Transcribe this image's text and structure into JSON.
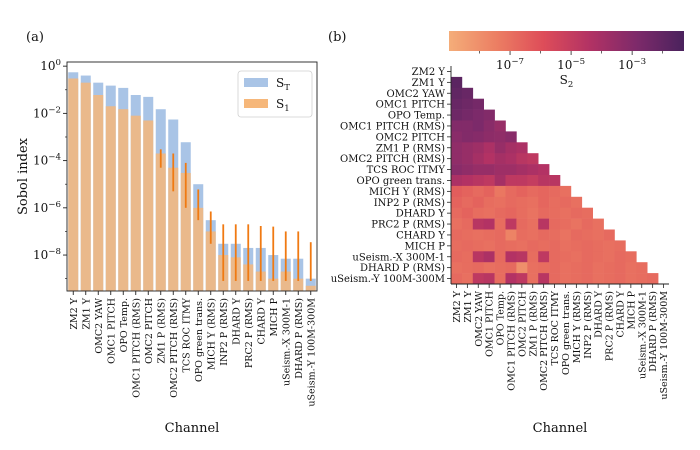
{
  "panels": {
    "a": "(a)",
    "b": "(b)"
  },
  "chart_data": [
    {
      "type": "bar",
      "panel": "(a)",
      "xlabel": "Channel",
      "ylabel": "Sobol index",
      "yscale": "log",
      "ylim": [
        3e-10,
        1.5
      ],
      "y_ticks": [
        1,
        0.01,
        0.0001,
        1e-06,
        1e-08
      ],
      "y_tick_labels": [
        {
          "base": "10",
          "exp": "0"
        },
        {
          "base": "10",
          "exp": "−2"
        },
        {
          "base": "10",
          "exp": "−4"
        },
        {
          "base": "10",
          "exp": "−6"
        },
        {
          "base": "10",
          "exp": "−8"
        }
      ],
      "legend_position": "top-right",
      "categories": [
        "ZM2 Y",
        "ZM1 Y",
        "OMC2 YAW",
        "OMC1 PITCH",
        "OPO Temp.",
        "OMC1 PITCH (RMS)",
        "OMC2 PITCH",
        "ZM1 P (RMS)",
        "OMC2 PITCH (RMS)",
        "TCS ROC ITMY",
        "OPO green trans.",
        "MICH Y (RMS)",
        "INP2 P (RMS)",
        "DHARD Y",
        "PRC2 P (RMS)",
        "CHARD Y",
        "MICH P",
        "uSeism.-X 300M-1",
        "DHARD P (RMS)",
        "uSeism.-Y 100M-300M"
      ],
      "series": [
        {
          "name": "S",
          "sub": "T",
          "color": "#a9c4e6",
          "values": [
            0.55,
            0.4,
            0.2,
            0.15,
            0.12,
            0.06,
            0.05,
            0.015,
            0.0055,
            0.0006,
            1e-05,
            3e-07,
            3e-08,
            3e-08,
            2e-08,
            2e-08,
            1e-08,
            7e-09,
            7e-09,
            1e-09
          ]
        },
        {
          "name": "S",
          "sub": "1",
          "color": "#f6b77a",
          "values": [
            0.3,
            0.2,
            0.06,
            0.02,
            0.015,
            0.008,
            0.005,
            0.0002,
            5e-05,
            3e-05,
            1e-06,
            1e-07,
            1e-08,
            8e-09,
            4e-09,
            2e-09,
            1e-09,
            2e-09,
            1e-09,
            5e-10
          ]
        }
      ],
      "s1_error_high": [
        null,
        null,
        null,
        null,
        null,
        null,
        null,
        0.0003,
        0.0002,
        8e-05,
        6e-06,
        7e-07,
        2e-07,
        2e-07,
        2e-07,
        1.7e-07,
        1.6e-07,
        1e-07,
        1e-07,
        3.5e-08
      ],
      "s1_error_low": [
        null,
        null,
        null,
        null,
        null,
        null,
        null,
        5e-05,
        5e-06,
        1e-06,
        3e-07,
        3e-08,
        8e-10,
        8e-10,
        8e-10,
        8e-10,
        8e-10,
        8e-10,
        8e-10,
        8e-10
      ],
      "error_color": "#f07a12"
    },
    {
      "type": "heatmap",
      "panel": "(b)",
      "xlabel": "Channel",
      "colorbar": {
        "label": "S",
        "label_sub": "2",
        "scale": "log",
        "range": [
          1e-09,
          0.05
        ],
        "ticks": [
          {
            "value": 1e-07,
            "exp": "−7"
          },
          {
            "value": 1e-05,
            "exp": "−5"
          },
          {
            "value": 0.001,
            "exp": "−3"
          }
        ],
        "tick_base": "10",
        "colors": [
          "#f4ad79",
          "#ec7f63",
          "#de4d59",
          "#b23264",
          "#7d2a6a",
          "#4a225d"
        ]
      },
      "rows": [
        "ZM2 Y",
        "ZM1 Y",
        "OMC2 YAW",
        "OMC1 PITCH",
        "OPO Temp.",
        "OMC1 PITCH (RMS)",
        "OMC2 PITCH",
        "ZM1 P (RMS)",
        "OMC2 PITCH (RMS)",
        "TCS ROC ITMY",
        "OPO green trans.",
        "MICH Y (RMS)",
        "INP2 P (RMS)",
        "DHARD Y",
        "PRC2 P (RMS)",
        "CHARD Y",
        "MICH P",
        "uSeism.-X 300M-1",
        "DHARD P (RMS)",
        "uSeism.-Y 100M-300M"
      ],
      "columns": [
        "ZM2 Y",
        "ZM1 Y",
        "OMC2 YAW",
        "OMC1 PITCH",
        "OPO Temp.",
        "OMC1 PITCH (RMS)",
        "OMC2 PITCH",
        "ZM1 P (RMS)",
        "OMC2 PITCH (RMS)",
        "TCS ROC ITMY",
        "OPO green trans.",
        "MICH Y (RMS)",
        "INP2 P (RMS)",
        "DHARD Y",
        "PRC2 P (RMS)",
        "CHARD Y",
        "MICH P",
        "uSeism.-X 300M-1",
        "DHARD P (RMS)",
        "uSeism.-Y 100M-300M"
      ],
      "log10_values": [
        [],
        [
          -1.8
        ],
        [
          -2.0,
          -2.2
        ],
        [
          -2.2,
          -2.4,
          -2.6
        ],
        [
          -2.4,
          -2.6,
          -2.8,
          -3.0
        ],
        [
          -3.0,
          -3.0,
          -2.8,
          -3.2,
          -3.6
        ],
        [
          -3.2,
          -3.0,
          -3.1,
          -3.3,
          -3.4,
          -3.2
        ],
        [
          -3.4,
          -3.6,
          -3.8,
          -4.2,
          -3.6,
          -4.0,
          -4.2
        ],
        [
          -3.4,
          -3.6,
          -4.0,
          -4.4,
          -4.0,
          -4.2,
          -4.6,
          -4.8
        ],
        [
          -3.2,
          -3.4,
          -3.6,
          -3.6,
          -3.8,
          -3.8,
          -4.0,
          -4.2,
          -4.4
        ],
        [
          -4.2,
          -4.4,
          -4.6,
          -4.8,
          -4.0,
          -4.8,
          -4.8,
          -5.0,
          -4.6,
          -4.6
        ],
        [
          -6.4,
          -6.6,
          -6.8,
          -6.6,
          -7.2,
          -6.8,
          -6.6,
          -6.8,
          -6.7,
          -6.8,
          -7.0
        ],
        [
          -6.6,
          -6.8,
          -6.6,
          -6.9,
          -7.0,
          -6.8,
          -6.9,
          -7.0,
          -6.7,
          -6.9,
          -6.8,
          -7.0
        ],
        [
          -6.8,
          -6.6,
          -6.9,
          -7.0,
          -6.8,
          -6.7,
          -6.9,
          -7.1,
          -6.8,
          -6.9,
          -7.0,
          -6.8,
          -6.9
        ],
        [
          -7.0,
          -6.8,
          -4.6,
          -4.4,
          -6.9,
          -4.8,
          -6.8,
          -7.0,
          -4.6,
          -6.8,
          -6.9,
          -7.1,
          -6.8,
          -7.0
        ],
        [
          -6.8,
          -6.9,
          -7.0,
          -6.9,
          -6.8,
          -7.6,
          -6.9,
          -7.0,
          -6.8,
          -6.9,
          -7.1,
          -6.8,
          -6.9,
          -7.0,
          -6.8
        ],
        [
          -6.9,
          -6.8,
          -6.9,
          -7.0,
          -6.8,
          -6.9,
          -7.0,
          -6.8,
          -6.9,
          -6.8,
          -7.0,
          -6.9,
          -6.8,
          -6.9,
          -7.0,
          -6.9
        ],
        [
          -6.8,
          -6.9,
          -4.6,
          -4.2,
          -6.8,
          -4.4,
          -4.6,
          -6.9,
          -4.8,
          -6.8,
          -6.9,
          -7.0,
          -6.8,
          -6.9,
          -7.0,
          -6.8,
          -6.9
        ],
        [
          -7.0,
          -6.9,
          -6.8,
          -7.0,
          -6.9,
          -6.8,
          -8.0,
          -7.0,
          -6.9,
          -6.8,
          -7.0,
          -6.9,
          -6.8,
          -7.0,
          -6.9,
          -6.8,
          -7.0,
          -6.9
        ],
        [
          -6.8,
          -7.0,
          -4.8,
          -4.6,
          -6.9,
          -4.4,
          -4.8,
          -7.0,
          -4.6,
          -6.8,
          -7.0,
          -6.9,
          -6.8,
          -7.0,
          -6.9,
          -6.8,
          -7.0,
          -6.9,
          -6.8
        ]
      ]
    }
  ]
}
